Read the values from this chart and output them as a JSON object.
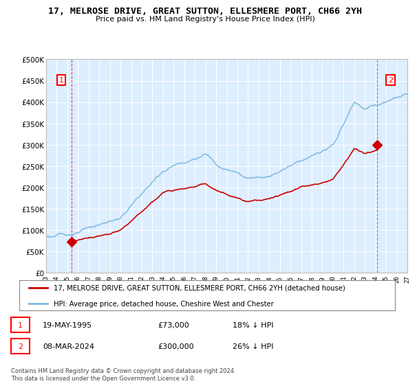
{
  "title": "17, MELROSE DRIVE, GREAT SUTTON, ELLESMERE PORT, CH66 2YH",
  "subtitle": "Price paid vs. HM Land Registry's House Price Index (HPI)",
  "ylabel_ticks": [
    "£0",
    "£50K",
    "£100K",
    "£150K",
    "£200K",
    "£250K",
    "£300K",
    "£350K",
    "£400K",
    "£450K",
    "£500K"
  ],
  "ytick_values": [
    0,
    50000,
    100000,
    150000,
    200000,
    250000,
    300000,
    350000,
    400000,
    450000,
    500000
  ],
  "xlim_start": 1993,
  "xlim_end": 2027,
  "ylim": [
    0,
    500000
  ],
  "hpi_color": "#7eb8e0",
  "price_color": "#cc0000",
  "bg_fill_color": "#ddeeff",
  "grid_color": "#aaaacc",
  "point1": {
    "year": 1995.38,
    "value": 73000,
    "label": "1"
  },
  "point2": {
    "year": 2024.18,
    "value": 300000,
    "label": "2"
  },
  "legend_line1": "17, MELROSE DRIVE, GREAT SUTTON, ELLESMERE PORT, CH66 2YH (detached house)",
  "legend_line2": "HPI: Average price, detached house, Cheshire West and Chester",
  "table_row1": [
    "1",
    "19-MAY-1995",
    "£73,000",
    "18% ↓ HPI"
  ],
  "table_row2": [
    "2",
    "08-MAR-2024",
    "£300,000",
    "26% ↓ HPI"
  ],
  "footnote": "Contains HM Land Registry data © Crown copyright and database right 2024.\nThis data is licensed under the Open Government Licence v3.0."
}
